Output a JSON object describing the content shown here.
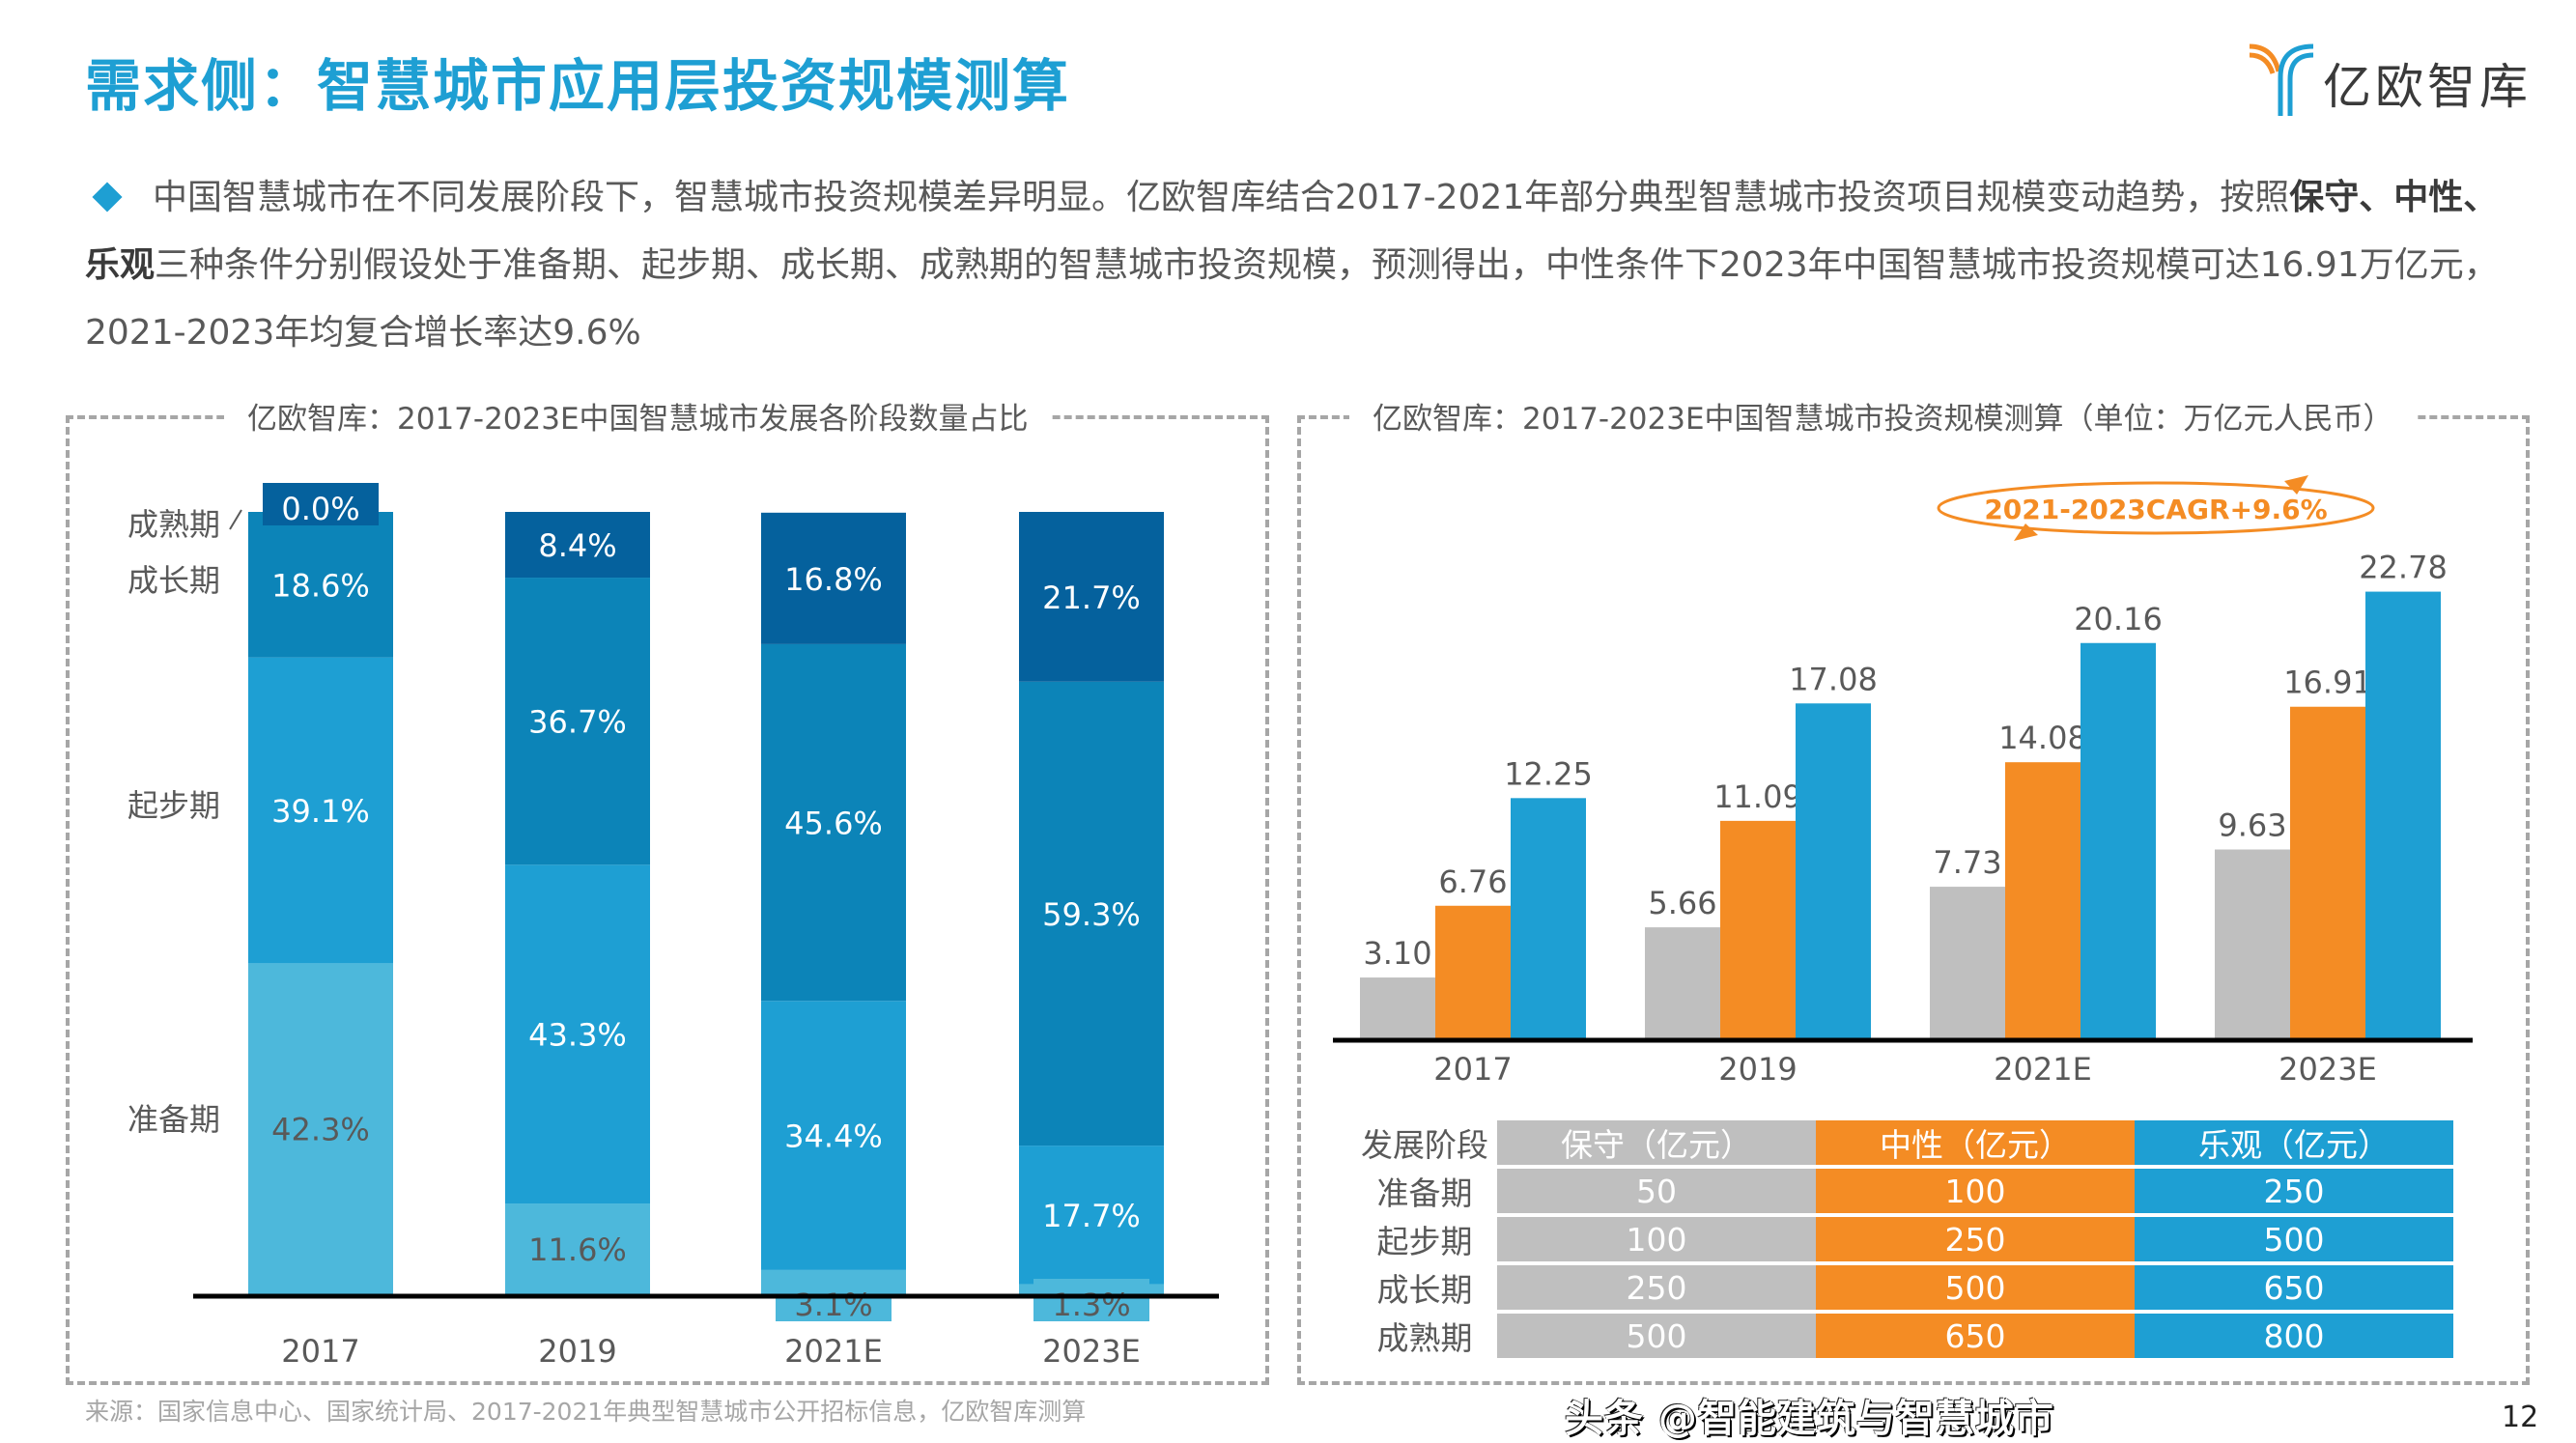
{
  "page": {
    "title": "需求侧：智慧城市应用层投资规模测算",
    "logo_text": "亿欧智库",
    "intro": {
      "part1": "中国智慧城市在不同发展阶段下，智慧城市投资规模差异明显。亿欧智库结合2017-2021年部分典型智慧城市投资项目规模变动趋势，按照",
      "bold": "保守、中性、乐观",
      "part2": "三种条件分别假设处于准备期、起步期、成长期、成熟期的智慧城市投资规模，预测得出，中性条件下2023年中国智慧城市投资规模可达16.91万亿元，2021-2023年均复合增长率达9.6%"
    },
    "source": "来源：国家信息中心、国家统计局、2017-2021年典型智慧城市公开招标信息，亿欧智库测算",
    "page_number": "12",
    "watermark": "头条 @智能建筑与智慧城市",
    "colors": {
      "accent": "#1E9FD3",
      "orange": "#F48C24",
      "gray": "#BFBFBF",
      "stage_prep": "#4DB8DB",
      "stage_start": "#1E9FD3",
      "stage_growth": "#0C84B8",
      "stage_mature": "#05619D"
    }
  },
  "chart_data": [
    {
      "type": "bar",
      "stacked": true,
      "percent": true,
      "title": "亿欧智库：2017-2023E中国智慧城市发展各阶段数量占比",
      "categories": [
        "2017",
        "2019",
        "2021E",
        "2023E"
      ],
      "series": [
        {
          "name": "准备期",
          "values": [
            42.3,
            11.6,
            3.1,
            1.3
          ],
          "labels": [
            "42.3%",
            "11.6%",
            "3.1%",
            "1.3%"
          ]
        },
        {
          "name": "起步期",
          "values": [
            39.1,
            43.3,
            34.4,
            17.7
          ],
          "labels": [
            "39.1%",
            "43.3%",
            "34.4%",
            "17.7%"
          ]
        },
        {
          "name": "成长期",
          "values": [
            18.6,
            36.7,
            45.6,
            59.3
          ],
          "labels": [
            "18.6%",
            "36.7%",
            "45.6%",
            "59.3%"
          ]
        },
        {
          "name": "成熟期",
          "values": [
            0.0,
            8.4,
            16.8,
            21.7
          ],
          "labels": [
            "0.0%",
            "8.4%",
            "16.8%",
            "21.7%"
          ]
        }
      ],
      "legend": "left",
      "ylim": [
        0,
        100
      ]
    },
    {
      "type": "bar",
      "title": "亿欧智库：2017-2023E中国智慧城市投资规模测算（单位：万亿元人民币）",
      "categories": [
        "2017",
        "2019",
        "2021E",
        "2023E"
      ],
      "series": [
        {
          "name": "保守",
          "values": [
            3.1,
            5.66,
            7.73,
            9.63
          ],
          "labels": [
            "3.10",
            "5.66",
            "7.73",
            "9.63"
          ]
        },
        {
          "name": "中性",
          "values": [
            6.76,
            11.09,
            14.08,
            16.91
          ],
          "labels": [
            "6.76",
            "11.09",
            "14.08",
            "16.91"
          ]
        },
        {
          "name": "乐观",
          "values": [
            12.25,
            17.08,
            20.16,
            22.78
          ],
          "labels": [
            "12.25",
            "17.08",
            "20.16",
            "22.78"
          ]
        }
      ],
      "annotation": "2021-2023CAGR+9.6%",
      "ylim": [
        0,
        24
      ]
    },
    {
      "type": "table",
      "columns": [
        "发展阶段",
        "保守（亿元）",
        "中性（亿元）",
        "乐观（亿元）"
      ],
      "rows": [
        [
          "准备期",
          "50",
          "100",
          "250"
        ],
        [
          "起步期",
          "100",
          "250",
          "500"
        ],
        [
          "成长期",
          "250",
          "500",
          "650"
        ],
        [
          "成熟期",
          "500",
          "650",
          "800"
        ]
      ]
    }
  ]
}
